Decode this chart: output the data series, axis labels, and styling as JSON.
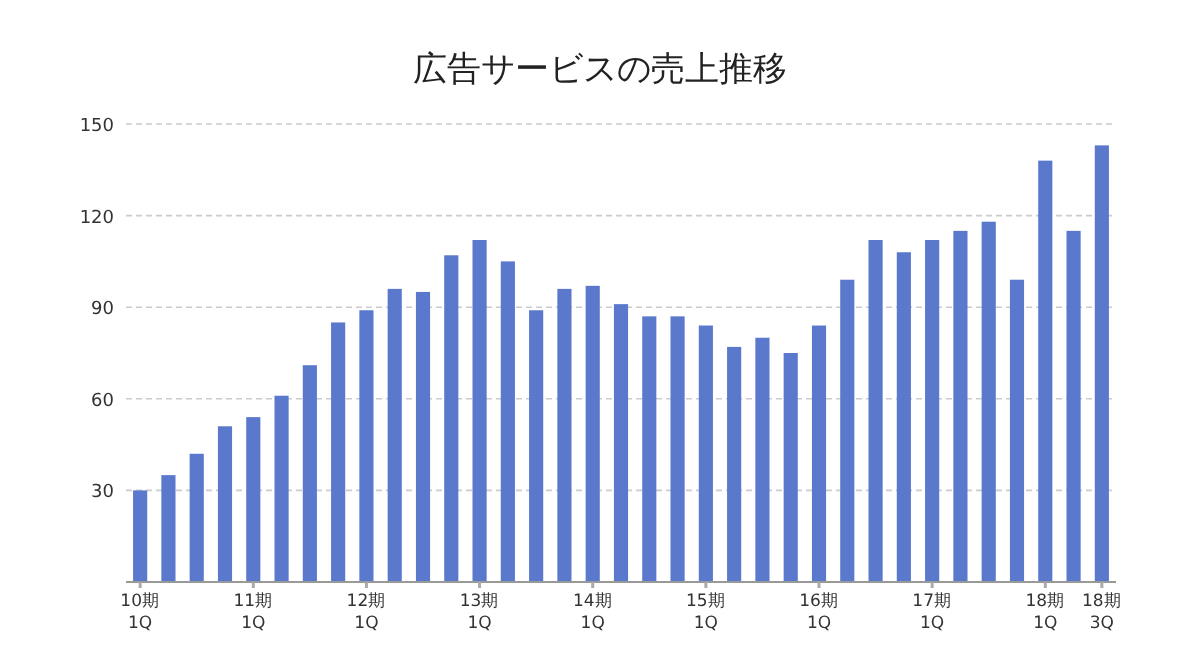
{
  "chart_data": {
    "type": "bar",
    "title": "広告サービスの売上推移",
    "categories": [
      "10期\n1Q",
      null,
      null,
      null,
      "11期\n1Q",
      null,
      null,
      null,
      "12期\n1Q",
      null,
      null,
      null,
      "13期\n1Q",
      null,
      null,
      null,
      "14期\n1Q",
      null,
      null,
      null,
      "15期\n1Q",
      null,
      null,
      null,
      "16期\n1Q",
      null,
      null,
      null,
      "17期\n1Q",
      null,
      null,
      null,
      "18期\n1Q",
      null,
      "18期\n3Q"
    ],
    "values": [
      30,
      35,
      42,
      51,
      54,
      61,
      71,
      85,
      89,
      96,
      95,
      107,
      112,
      105,
      89,
      96,
      97,
      91,
      87,
      87,
      84,
      77,
      80,
      75,
      84,
      99,
      112,
      108,
      112,
      115,
      118,
      99,
      138,
      115,
      143
    ],
    "color": "#5a78cc",
    "ylim": [
      0,
      150
    ],
    "yticks": [
      30,
      60,
      90,
      120,
      150
    ],
    "grid": "y"
  }
}
